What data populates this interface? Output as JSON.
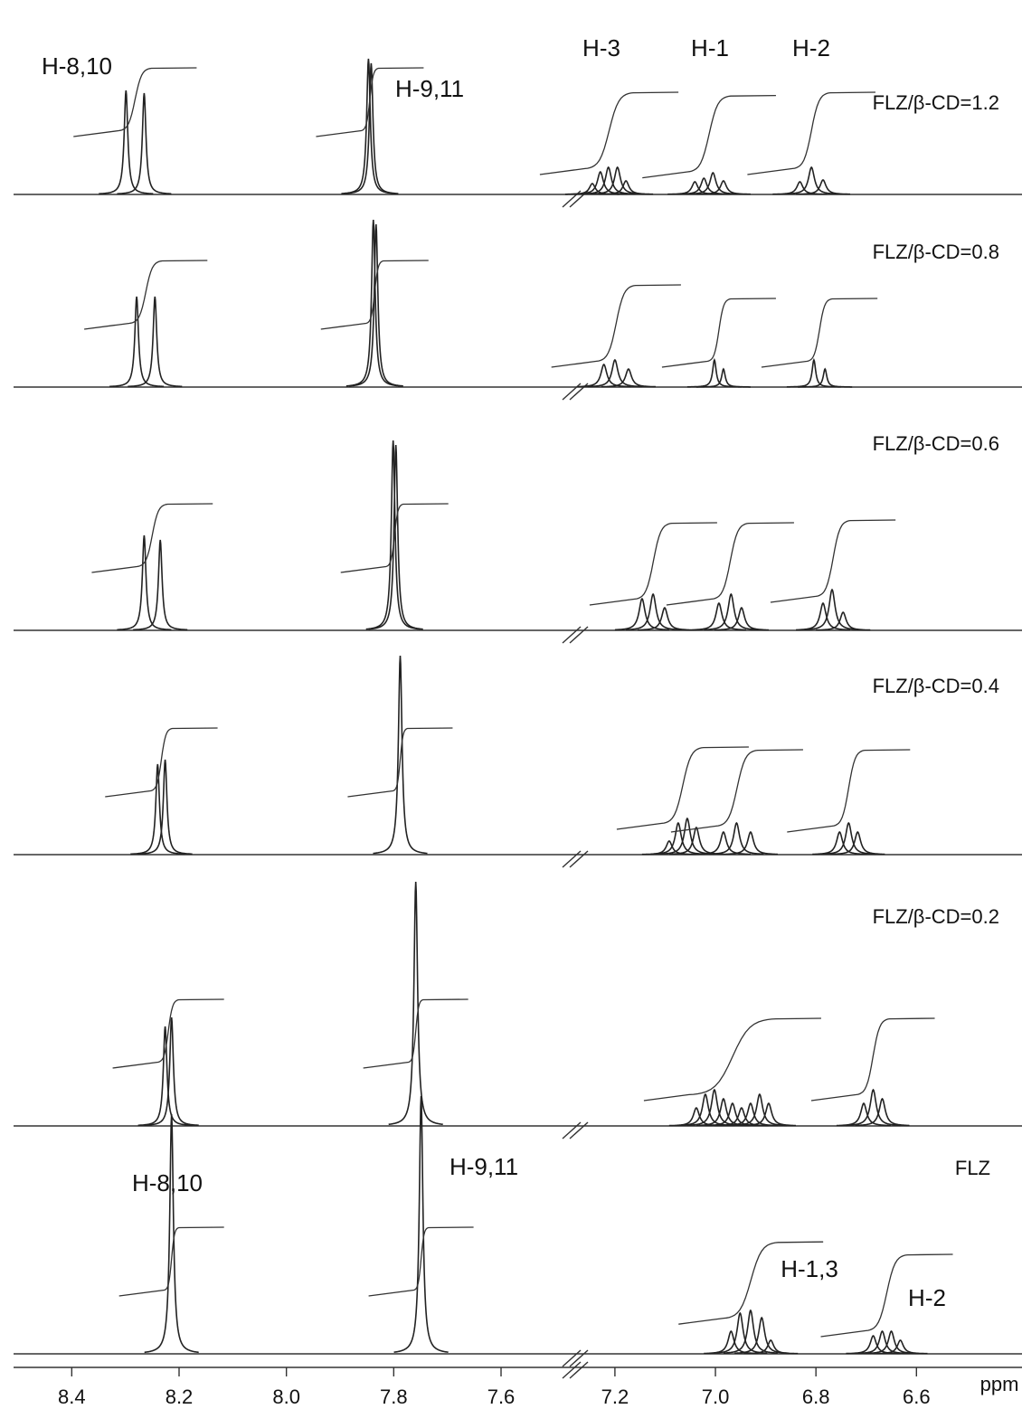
{
  "chart_data": {
    "type": "nmr",
    "x_label": "ppm",
    "x_segments": [
      {
        "xlim": [
          8.5,
          7.45
        ],
        "xticks": [
          8.4,
          8.2,
          {
            "value": 8,
            "label": "8.0"
          },
          7.8,
          7.6
        ]
      },
      {
        "xlim": [
          7.27,
          6.39
        ],
        "xticks": [
          7.2,
          {
            "value": 7,
            "label": "7.0"
          },
          6.8,
          6.6
        ]
      }
    ],
    "annotations": [
      "H-8,10",
      "H-9,11",
      "H-3",
      "H-1",
      "H-2",
      "H-8,10",
      "H-9,11",
      "H-1,3",
      "H-2"
    ],
    "spectra": [
      {
        "label": "FLZ/β-CD=1.2",
        "groups": [
          {
            "ppm": [
              8.299,
              8.265
            ],
            "heights": [
              115,
              112
            ]
          },
          {
            "ppm": [
              7.847,
              7.842
            ],
            "heights": [
              150,
              145
            ]
          },
          {
            "ppm": [
              7.245,
              7.229,
              7.213,
              7.195,
              7.178
            ],
            "heights": [
              12,
              25,
              30,
              30,
              15
            ]
          },
          {
            "ppm": [
              7.041,
              7.023,
              7.005,
              6.984
            ],
            "heights": [
              14,
              18,
              24,
              15
            ]
          },
          {
            "ppm": [
              6.832,
              6.809,
              6.786
            ],
            "heights": [
              14,
              30,
              16
            ]
          }
        ]
      },
      {
        "label": "FLZ/β-CD=0.8",
        "groups": [
          {
            "ppm": [
              8.279,
              8.245
            ],
            "heights": [
              100,
              100
            ]
          },
          {
            "ppm": [
              7.838,
              7.833
            ],
            "heights": [
              185,
              180
            ]
          },
          {
            "ppm": [
              7.222,
              7.2,
              7.173
            ],
            "heights": [
              25,
              30,
              20
            ]
          },
          {
            "ppm": [
              7.002,
              6.984
            ],
            "heights": [
              30,
              20
            ]
          },
          {
            "ppm": [
              6.804,
              6.782
            ],
            "heights": [
              30,
              20
            ]
          }
        ]
      },
      {
        "label": "FLZ/β-CD=0.6",
        "groups": [
          {
            "ppm": [
              8.265,
              8.235
            ],
            "heights": [
              105,
              100
            ]
          },
          {
            "ppm": [
              7.801,
              7.796
            ],
            "heights": [
              210,
              205
            ]
          },
          {
            "ppm": [
              7.146,
              7.124,
              7.101
            ],
            "heights": [
              35,
              40,
              25
            ]
          },
          {
            "ppm": [
              6.993,
              6.969,
              6.948
            ],
            "heights": [
              30,
              40,
              25
            ]
          },
          {
            "ppm": [
              6.786,
              6.768,
              6.746
            ],
            "heights": [
              30,
              45,
              20
            ]
          }
        ]
      },
      {
        "label": "FLZ/β-CD=0.4",
        "groups": [
          {
            "ppm": [
              8.24,
              8.226
            ],
            "heights": [
              100,
              105
            ]
          },
          {
            "ppm": [
              7.788
            ],
            "heights": [
              220
            ]
          },
          {
            "ppm": [
              7.092,
              7.074,
              7.056,
              7.038
            ],
            "heights": [
              15,
              35,
              40,
              30
            ]
          },
          {
            "ppm": [
              6.984,
              6.958,
              6.93
            ],
            "heights": [
              25,
              35,
              25
            ]
          },
          {
            "ppm": [
              6.753,
              6.735,
              6.717
            ],
            "heights": [
              25,
              35,
              25
            ]
          }
        ]
      },
      {
        "label": "FLZ/β-CD=0.2",
        "groups": [
          {
            "ppm": [
              8.226,
              8.214
            ],
            "heights": [
              110,
              120
            ]
          },
          {
            "ppm": [
              7.759
            ],
            "heights": [
              270
            ]
          },
          {
            "ppm": [
              7.038,
              7.02,
              7.002,
              6.984,
              6.966,
              6.948,
              6.93,
              6.912,
              6.894
            ],
            "heights": [
              20,
              35,
              40,
              30,
              25,
              20,
              25,
              35,
              25
            ]
          },
          {
            "ppm": [
              6.705,
              6.686,
              6.668
            ],
            "heights": [
              25,
              40,
              30
            ]
          }
        ]
      },
      {
        "label": "FLZ",
        "groups": [
          {
            "ppm": [
              8.214
            ],
            "heights": [
              265
            ]
          },
          {
            "ppm": [
              7.749
            ],
            "heights": [
              285
            ]
          },
          {
            "ppm": [
              6.969,
              6.951,
              6.93,
              6.908,
              6.89
            ],
            "heights": [
              25,
              45,
              48,
              40,
              15
            ]
          },
          {
            "ppm": [
              6.686,
              6.668,
              6.65,
              6.632
            ],
            "heights": [
              20,
              25,
              25,
              15
            ]
          }
        ]
      }
    ]
  }
}
